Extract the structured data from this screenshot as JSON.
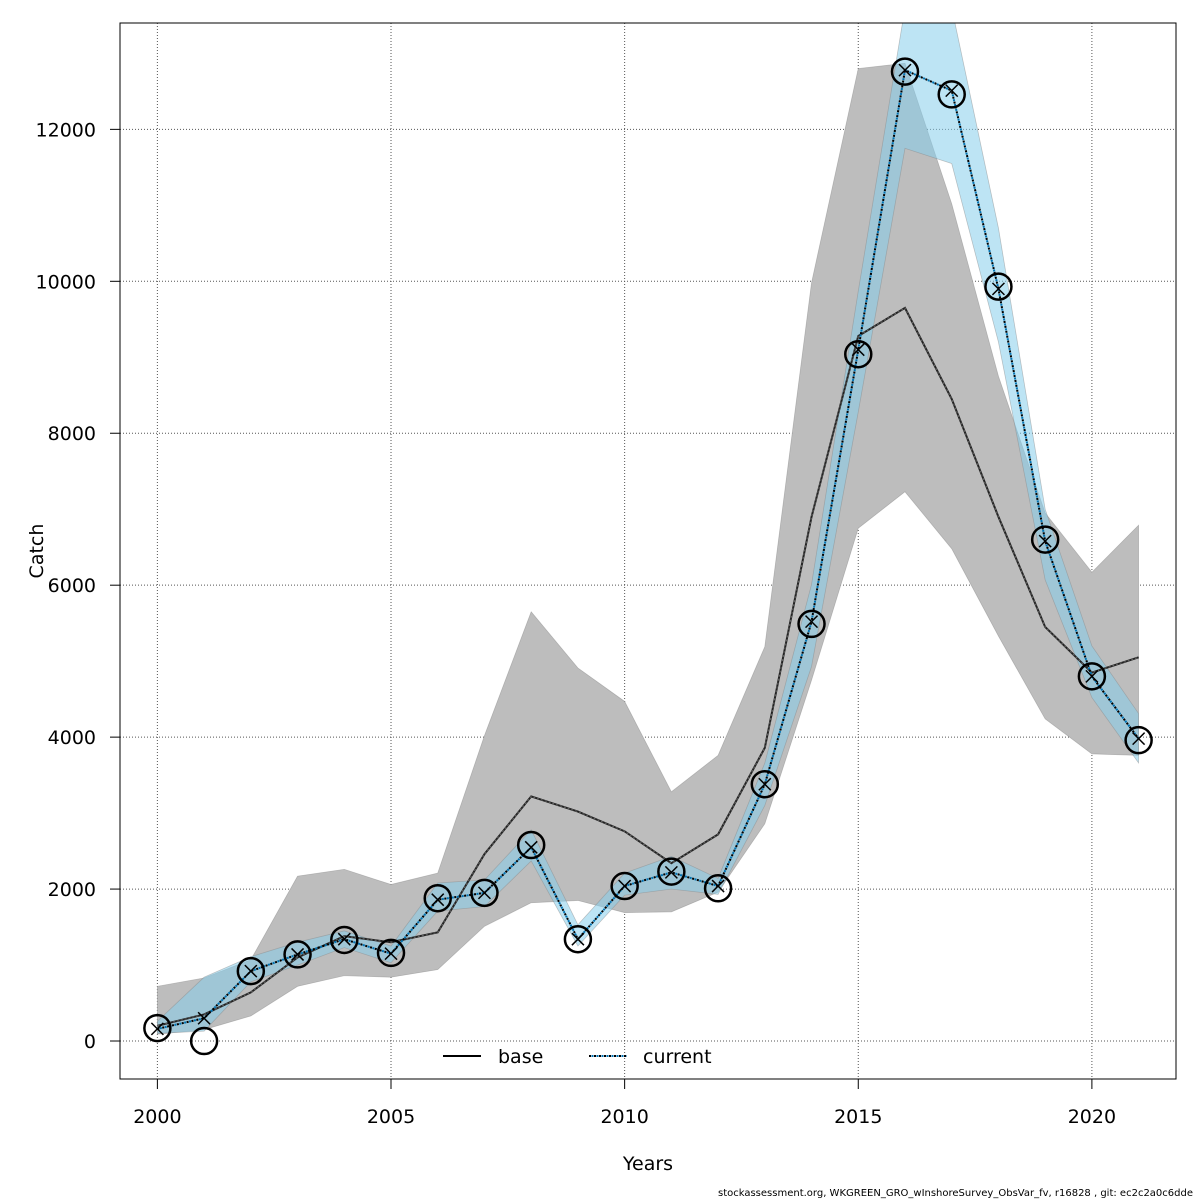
{
  "chart_data": {
    "type": "line",
    "xlabel": "Years",
    "ylabel": "Catch",
    "xlim": [
      1999.2,
      2021.8
    ],
    "ylim": [
      -500,
      13400
    ],
    "x_ticks": [
      2000,
      2005,
      2010,
      2015,
      2020
    ],
    "y_ticks": [
      0,
      2000,
      4000,
      6000,
      8000,
      10000,
      12000
    ],
    "grid": true,
    "legend_position": "bottom-center",
    "x": [
      2000,
      2001,
      2002,
      2003,
      2004,
      2005,
      2006,
      2007,
      2008,
      2009,
      2010,
      2011,
      2012,
      2013,
      2014,
      2015,
      2016,
      2017,
      2018,
      2019,
      2020,
      2021
    ],
    "series": [
      {
        "name": "base",
        "color": "#222222",
        "linestyle": "solid",
        "values": [
          200,
          350,
          640,
          1100,
          1380,
          1300,
          1430,
          2460,
          3220,
          3020,
          2760,
          2340,
          2720,
          3860,
          6900,
          9280,
          9650,
          8450,
          6900,
          5450,
          4850,
          5050
        ],
        "lower": [
          90,
          150,
          330,
          720,
          860,
          840,
          940,
          1510,
          1820,
          1850,
          1690,
          1700,
          1960,
          2860,
          4750,
          6750,
          7230,
          6480,
          5330,
          4240,
          3780,
          3760
        ],
        "upper": [
          720,
          830,
          1070,
          2170,
          2260,
          2060,
          2210,
          4020,
          5650,
          4910,
          4470,
          3280,
          3760,
          5190,
          9980,
          12800,
          12870,
          11020,
          8750,
          6950,
          6170,
          6790
        ]
      },
      {
        "name": "current",
        "color": "#0072b2",
        "linestyle": "dotted",
        "values": [
          160,
          300,
          920,
          1140,
          1340,
          1150,
          1860,
          1950,
          2550,
          1340,
          2040,
          2220,
          2040,
          3380,
          5520,
          9100,
          12780,
          12510,
          9900,
          6580,
          4800,
          3980
        ],
        "lower": [
          100,
          130,
          780,
          1000,
          1230,
          1030,
          1710,
          1770,
          2370,
          1250,
          1920,
          2000,
          1930,
          3100,
          4930,
          8280,
          11750,
          11550,
          9200,
          6070,
          4520,
          3660
        ],
        "upper": [
          260,
          840,
          1110,
          1300,
          1450,
          1250,
          2080,
          2120,
          2780,
          1530,
          2210,
          2430,
          2140,
          3660,
          6010,
          9870,
          13600,
          13600,
          10700,
          7000,
          5200,
          4310
        ]
      }
    ],
    "observations": {
      "x": [
        2000,
        2001,
        2002,
        2003,
        2004,
        2005,
        2006,
        2007,
        2008,
        2009,
        2010,
        2011,
        2012,
        2013,
        2014,
        2015,
        2016,
        2017,
        2018,
        2019,
        2020,
        2021
      ],
      "values": [
        170,
        0,
        920,
        1140,
        1330,
        1160,
        1880,
        1950,
        2580,
        1340,
        2040,
        2230,
        2010,
        3380,
        5490,
        9040,
        12760,
        12460,
        9930,
        6600,
        4800,
        3960
      ]
    },
    "band_colors": {
      "base": "#bdbdbd",
      "current": "#87ceeb"
    }
  },
  "footer": "stockassessment.org, WKGREEN_GRO_wInshoreSurvey_ObsVar_fv, r16828 , git: ec2c2a0c6dde"
}
